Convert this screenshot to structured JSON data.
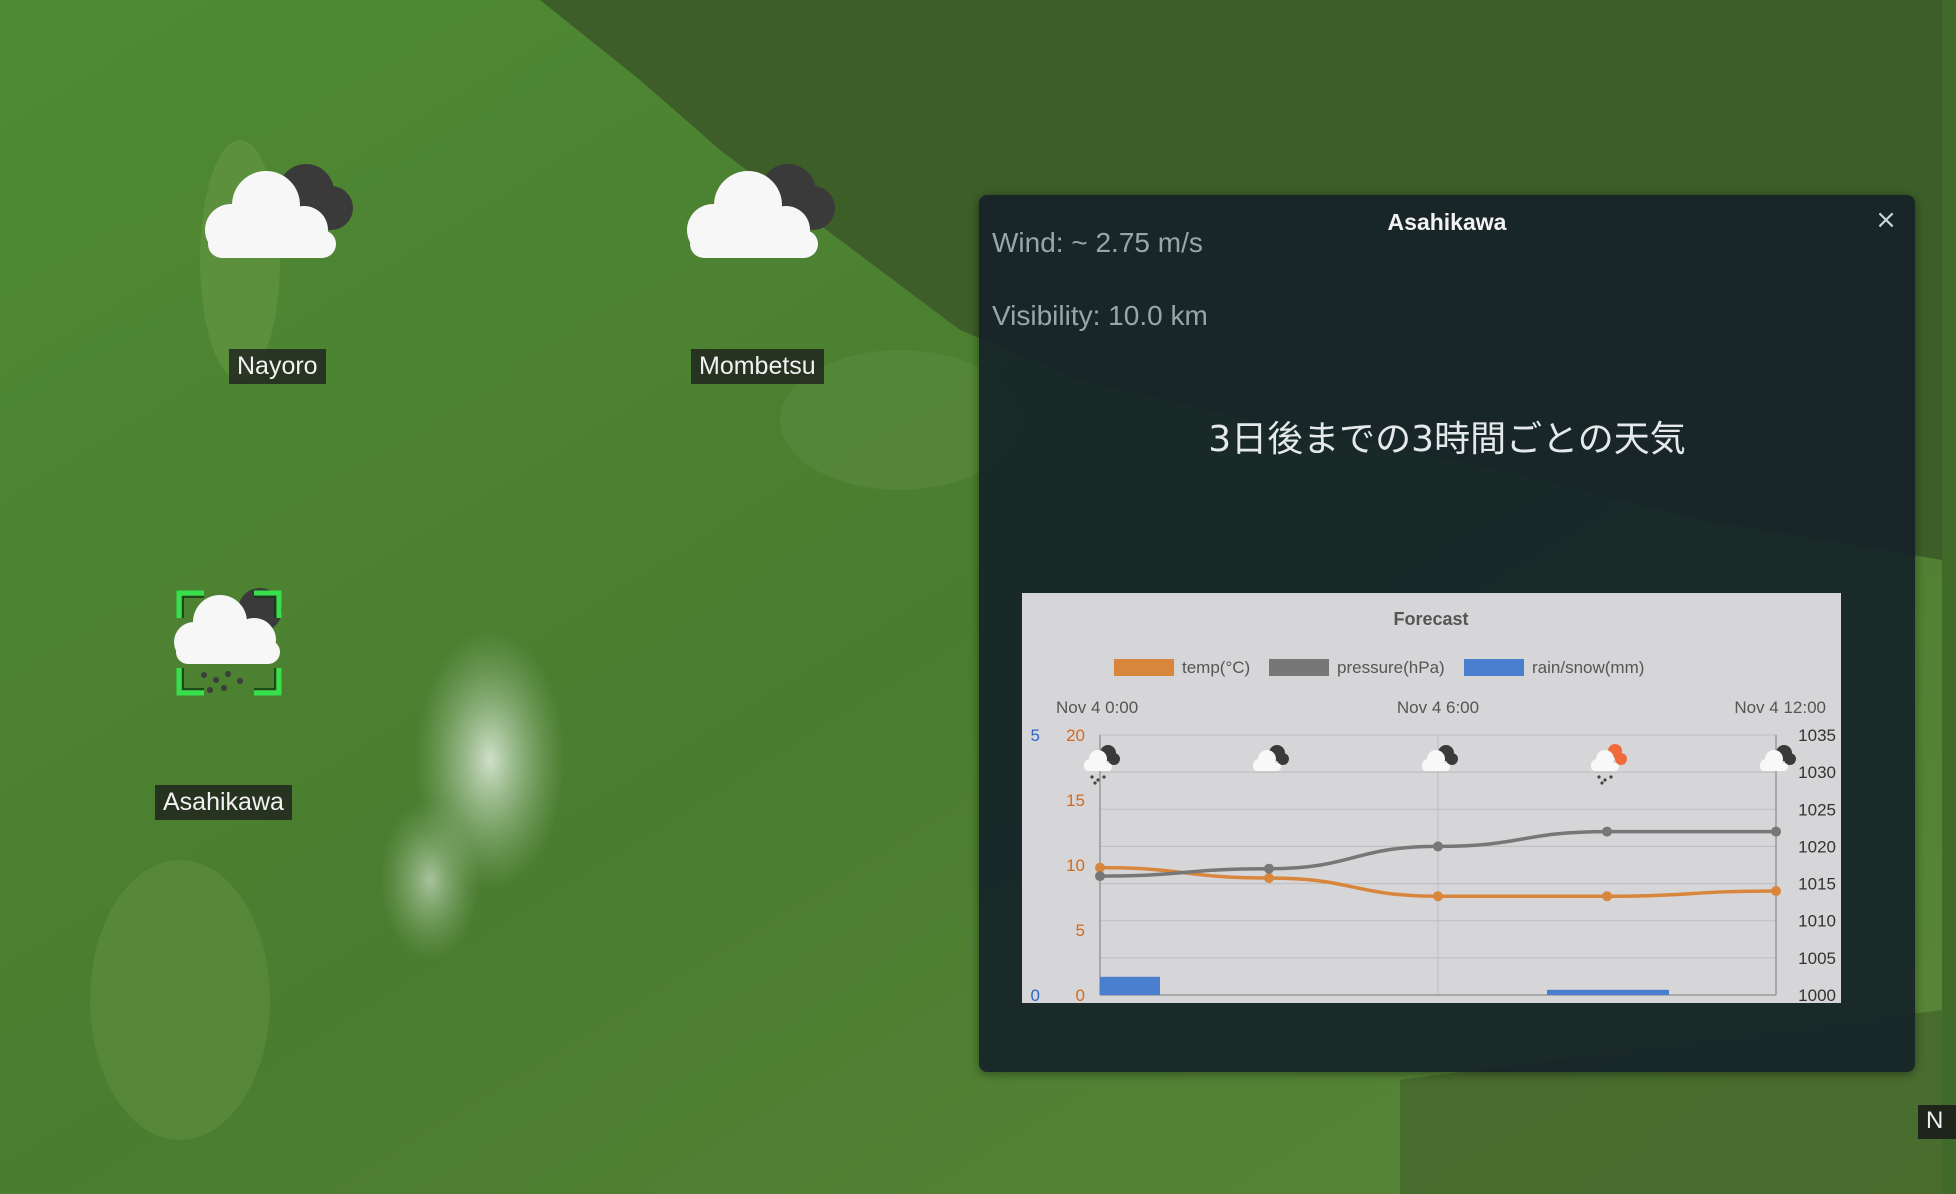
{
  "map": {
    "colors": {
      "land": "#4d7a32",
      "sea": "#3c5a27",
      "mountain_snow": "#c9dcc5"
    },
    "cities": [
      {
        "name": "Nayoro",
        "icon": "cloudy-icon"
      },
      {
        "name": "Mombetsu",
        "icon": "cloudy-icon"
      },
      {
        "name": "Asahikawa",
        "icon": "rain-cloud-icon",
        "selected": true
      }
    ],
    "partial_label": "N"
  },
  "popup": {
    "title": "Asahikawa",
    "close_label": "×",
    "wind": "Wind: ~ 2.75 m/s",
    "visibility": "Visibility: 10.0 km",
    "heading": "3日後までの3時間ごとの天気"
  },
  "chart_data": {
    "type": "line",
    "title": "Forecast",
    "legend": [
      "temp(°C)",
      "pressure(hPa)",
      "rain/snow(mm)"
    ],
    "legend_position": "top",
    "x_labels": [
      "Nov 4 0:00",
      "Nov 4 6:00",
      "Nov 4 12:00"
    ],
    "x_hours": [
      0,
      3,
      6,
      9,
      12
    ],
    "weather_icons": [
      "rain-snow-icon",
      "cloudy-icon",
      "cloudy-icon",
      "sun-rain-icon",
      "cloudy-icon"
    ],
    "series": [
      {
        "name": "temp(°C)",
        "type": "line",
        "color": "#d9863d",
        "axis": "temp",
        "values": [
          9.8,
          9.0,
          7.6,
          7.6,
          8.0
        ]
      },
      {
        "name": "pressure(hPa)",
        "type": "line",
        "color": "#777777",
        "axis": "pressure",
        "values": [
          1016.0,
          1017.0,
          1020.0,
          1022.0,
          1022.0
        ]
      },
      {
        "name": "rain/snow(mm)",
        "type": "bar",
        "color": "#4a7fd0",
        "axis": "rain",
        "values": [
          0.35,
          0,
          0,
          0.1,
          0
        ]
      }
    ],
    "axes": {
      "rain": {
        "range": [
          0,
          5
        ],
        "ticks": [
          0,
          5
        ],
        "color": "#2d66c8"
      },
      "temp": {
        "range": [
          0,
          20
        ],
        "ticks": [
          0,
          5,
          10,
          15,
          20
        ],
        "color": "#d06a20"
      },
      "pressure": {
        "range": [
          1000,
          1035
        ],
        "ticks": [
          1000,
          1005,
          1010,
          1015,
          1020,
          1025,
          1030,
          1035
        ],
        "color": "#333333"
      }
    },
    "grid": true
  }
}
